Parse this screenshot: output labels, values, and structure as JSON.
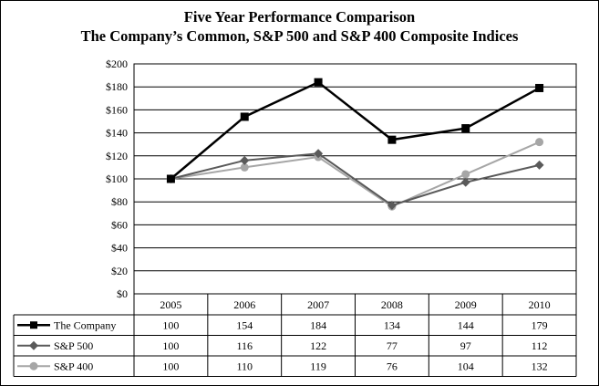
{
  "chart_data": {
    "type": "line",
    "title": "Five Year Performance Comparison",
    "subtitle": "The Company’s Common, S&P 500 and S&P 400 Composite Indices",
    "categories": [
      "2005",
      "2006",
      "2007",
      "2008",
      "2009",
      "2010"
    ],
    "ylim": [
      0,
      200
    ],
    "yticks": [
      0,
      20,
      40,
      60,
      80,
      100,
      120,
      140,
      160,
      180,
      200
    ],
    "ytick_labels": [
      "$0",
      "$20",
      "$40",
      "$60",
      "$80",
      "$100",
      "$120",
      "$140",
      "$160",
      "$180",
      "$200"
    ],
    "grid": true,
    "legend": "table-below",
    "series": [
      {
        "name": "The Company",
        "values": [
          100,
          154,
          184,
          134,
          144,
          179
        ],
        "color": "#000000",
        "marker": "square"
      },
      {
        "name": "S&P 500",
        "values": [
          100,
          116,
          122,
          77,
          97,
          112
        ],
        "color": "#5a5a5a",
        "marker": "diamond"
      },
      {
        "name": "S&P 400",
        "values": [
          100,
          110,
          119,
          76,
          104,
          132
        ],
        "color": "#a6a6a6",
        "marker": "circle"
      }
    ],
    "table_values": [
      [
        "100",
        "154",
        "184",
        "134",
        "144",
        "179"
      ],
      [
        "100",
        "116",
        "122",
        "77",
        "97",
        "112"
      ],
      [
        "100",
        "110",
        "119",
        "76",
        "104",
        "132"
      ]
    ]
  }
}
